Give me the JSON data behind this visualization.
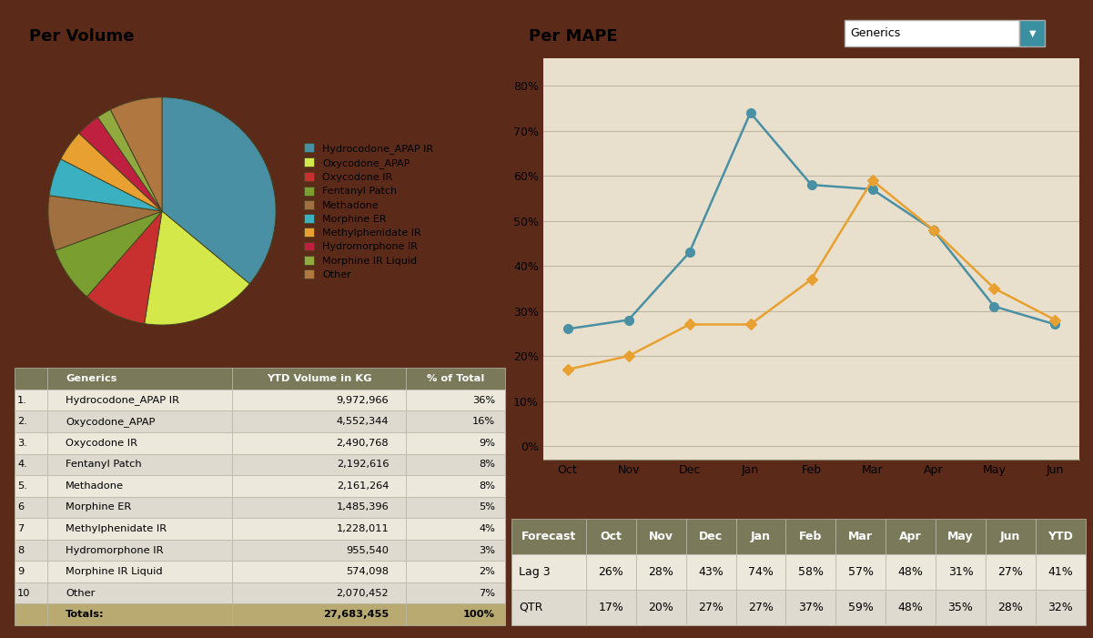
{
  "pie_title": "Per Volume",
  "pie_labels": [
    "Hydrocodone_APAP IR",
    "Oxycodone_APAP",
    "Oxycodone IR",
    "Fentanyl Patch",
    "Methadone",
    "Morphine ER",
    "Methylphenidate IR",
    "Hydromorphone IR",
    "Morphine IR Liquid",
    "Other"
  ],
  "pie_values": [
    9972966,
    4552344,
    2490768,
    2192616,
    2161264,
    1485396,
    1228011,
    955540,
    574098,
    2070452
  ],
  "pie_colors": [
    "#4a90a4",
    "#d4e84a",
    "#c83030",
    "#7a9e30",
    "#a07040",
    "#3ab0c0",
    "#e8a030",
    "#c02040",
    "#90aa40",
    "#b07840"
  ],
  "table_left_rows": [
    [
      "1.",
      "Hydrocodone_APAP IR",
      "9,972,966",
      "36%"
    ],
    [
      "2.",
      "Oxycodone_APAP",
      "4,552,344",
      "16%"
    ],
    [
      "3.",
      "Oxycodone IR",
      "2,490,768",
      "9%"
    ],
    [
      "4.",
      "Fentanyl Patch",
      "2,192,616",
      "8%"
    ],
    [
      "5.",
      "Methadone",
      "2,161,264",
      "8%"
    ],
    [
      "6",
      "Morphine ER",
      "1,485,396",
      "5%"
    ],
    [
      "7",
      "Methylphenidate IR",
      "1,228,011",
      "4%"
    ],
    [
      "8",
      "Hydromorphone IR",
      "955,540",
      "3%"
    ],
    [
      "9",
      "Morphine IR Liquid",
      "574,098",
      "2%"
    ],
    [
      "10",
      "Other",
      "2,070,452",
      "7%"
    ],
    [
      "",
      "Totals:",
      "27,683,455",
      "100%"
    ]
  ],
  "line_title": "Per MAPE",
  "line_months": [
    "Oct",
    "Nov",
    "Dec",
    "Jan",
    "Feb",
    "Mar",
    "Apr",
    "May",
    "Jun"
  ],
  "lag3_values": [
    26,
    28,
    43,
    74,
    58,
    57,
    48,
    31,
    27
  ],
  "qtr_values": [
    17,
    20,
    27,
    27,
    37,
    59,
    48,
    35,
    28
  ],
  "lag3_color": "#4a90a4",
  "qtr_color": "#e8a030",
  "line_yticks": [
    0,
    10,
    20,
    30,
    40,
    50,
    60,
    70,
    80
  ],
  "table_right_headers": [
    "Forecast",
    "Oct",
    "Nov",
    "Dec",
    "Jan",
    "Feb",
    "Mar",
    "Apr",
    "May",
    "Jun",
    "YTD"
  ],
  "table_right_rows": [
    [
      "Lag 3",
      "26%",
      "28%",
      "43%",
      "74%",
      "58%",
      "57%",
      "48%",
      "31%",
      "27%",
      "41%"
    ],
    [
      "QTR",
      "17%",
      "20%",
      "27%",
      "27%",
      "37%",
      "59%",
      "48%",
      "35%",
      "28%",
      "32%"
    ]
  ],
  "panel_bg": "#e8e0cc",
  "outer_bg": "#5c2a18",
  "table_header_bg": "#7a7a5a",
  "totals_bg": "#b8aa70",
  "row_even": "#ece8dc",
  "row_odd": "#dedad0",
  "dropdown_bg": "#3a8fa0",
  "title_bar_bg": "#ffffff",
  "panel_border": "#888870"
}
